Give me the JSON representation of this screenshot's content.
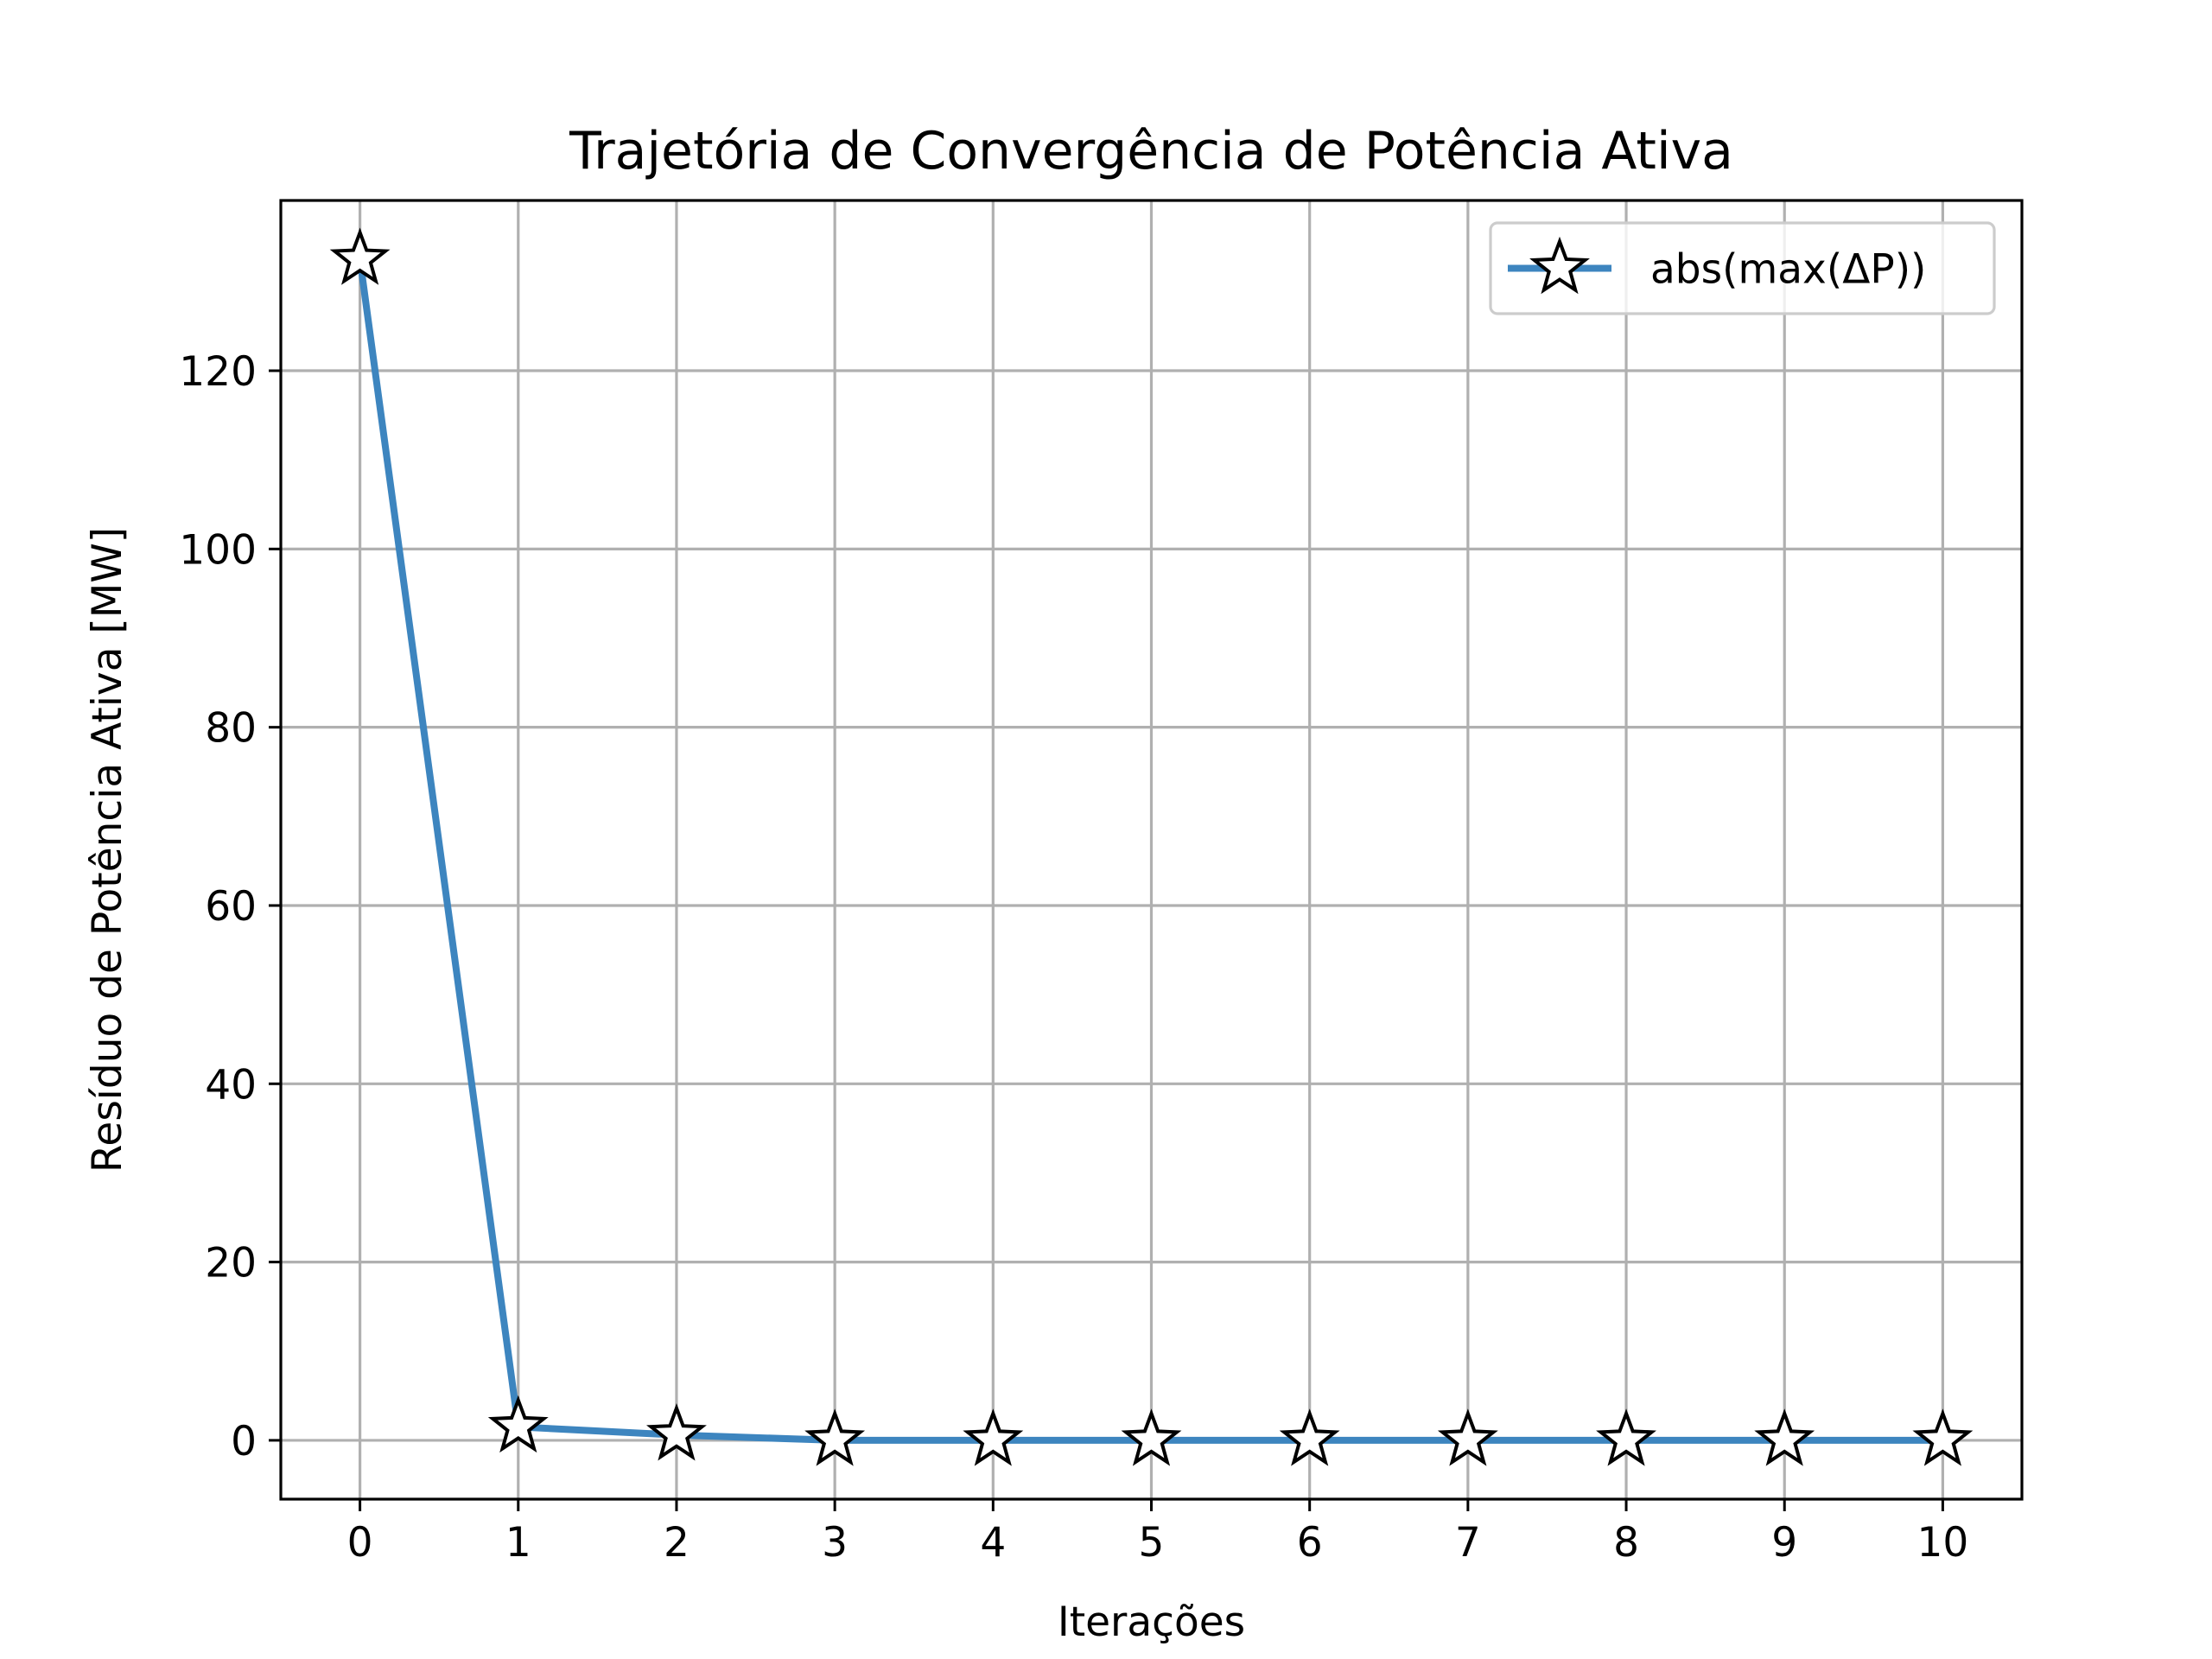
{
  "chart_data": {
    "type": "line",
    "title": "Trajetória de Convergência de Potência Ativa",
    "xlabel": "Iterações",
    "ylabel": "Resíduo de Potência Ativa [MW]",
    "x": [
      0,
      1,
      2,
      3,
      4,
      5,
      6,
      7,
      8,
      9,
      10
    ],
    "series": [
      {
        "name": "abs(max(ΔP))",
        "values": [
          132.5,
          1.5,
          0.6,
          0.0,
          0.0,
          0.0,
          0.0,
          0.0,
          0.0,
          0.0,
          0.0
        ],
        "color": "#3d85bf",
        "marker": "star"
      }
    ],
    "xticks": [
      "0",
      "1",
      "2",
      "3",
      "4",
      "5",
      "6",
      "7",
      "8",
      "9",
      "10"
    ],
    "yticks": [
      "0",
      "20",
      "40",
      "60",
      "80",
      "100",
      "120"
    ],
    "xlim": [
      -0.5,
      10.5
    ],
    "ylim": [
      -6.6,
      139.1
    ],
    "grid": true,
    "legend_position": "top-right"
  }
}
